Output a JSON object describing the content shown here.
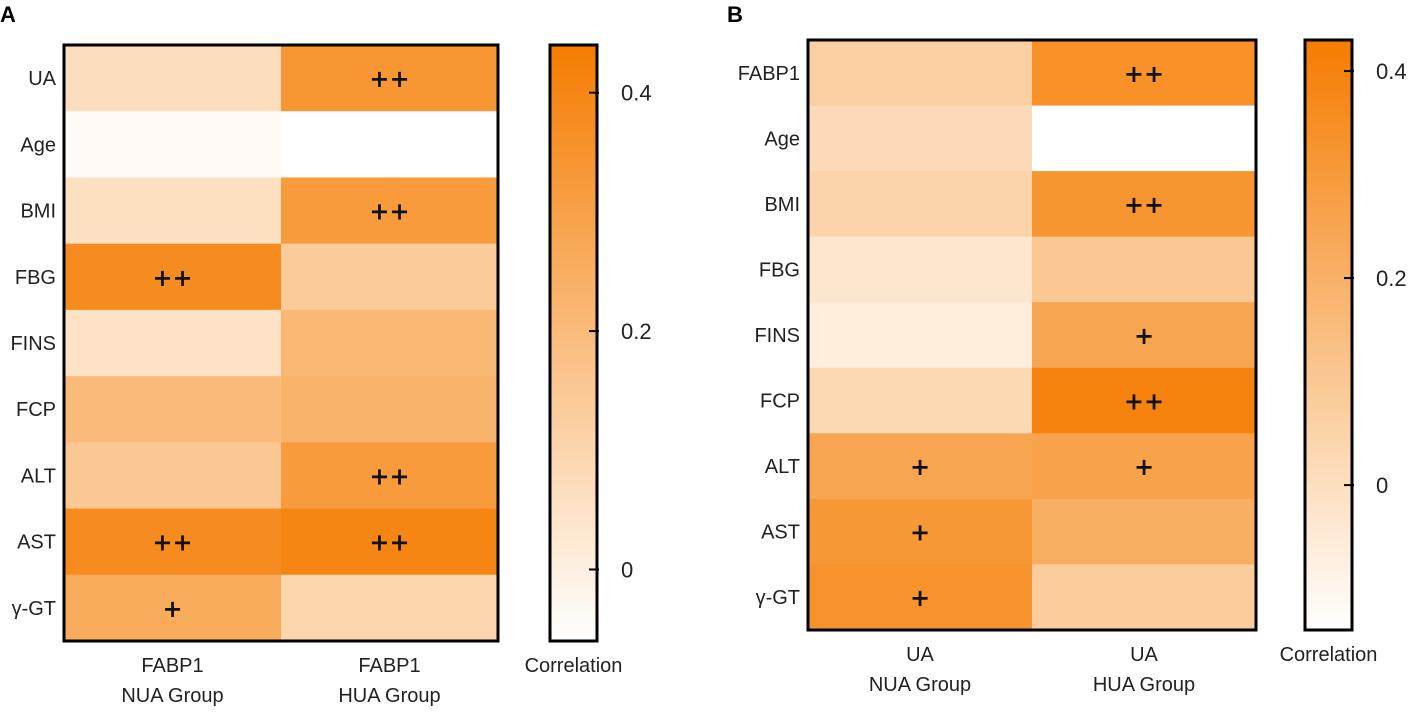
{
  "chart_data": [
    {
      "panel": "A",
      "type": "heatmap",
      "rows": [
        "UA",
        "Age",
        "BMI",
        "FBG",
        "FINS",
        "FCP",
        "ALT",
        "AST",
        "γ-GT"
      ],
      "columns": [
        [
          "FABP1",
          "NUA Group"
        ],
        [
          "FABP1",
          "HUA Group"
        ]
      ],
      "values": [
        [
          0.07,
          0.34
        ],
        [
          -0.04,
          -0.06
        ],
        [
          0.06,
          0.32
        ],
        [
          0.38,
          0.14
        ],
        [
          0.05,
          0.21
        ],
        [
          0.2,
          0.23
        ],
        [
          0.15,
          0.32
        ],
        [
          0.38,
          0.4
        ],
        [
          0.26,
          0.1
        ]
      ],
      "significance": [
        [
          "",
          "++"
        ],
        [
          "",
          ""
        ],
        [
          "",
          "++"
        ],
        [
          "++",
          ""
        ],
        [
          "",
          ""
        ],
        [
          "",
          ""
        ],
        [
          "",
          "++"
        ],
        [
          "++",
          "++"
        ],
        [
          "+",
          ""
        ]
      ],
      "colorbar": {
        "label": "Correlation",
        "range": [
          -0.06,
          0.44
        ],
        "ticks": [
          0,
          0.2,
          0.4
        ],
        "tick_labels": [
          "0",
          "0.2",
          "0.4"
        ],
        "color_low": "#ffffff",
        "color_high": "#f57c00"
      }
    },
    {
      "panel": "B",
      "type": "heatmap",
      "rows": [
        "FABP1",
        "Age",
        "BMI",
        "FBG",
        "FINS",
        "FCP",
        "ALT",
        "AST",
        "γ-GT"
      ],
      "columns": [
        [
          "UA",
          "NUA Group"
        ],
        [
          "UA",
          "HUA Group"
        ]
      ],
      "values": [
        [
          0.07,
          0.34
        ],
        [
          0.02,
          -0.14
        ],
        [
          0.05,
          0.32
        ],
        [
          -0.03,
          0.1
        ],
        [
          -0.06,
          0.25
        ],
        [
          0.03,
          0.4
        ],
        [
          0.25,
          0.26
        ],
        [
          0.31,
          0.21
        ],
        [
          0.33,
          0.08
        ]
      ],
      "significance": [
        [
          "",
          "++"
        ],
        [
          "",
          ""
        ],
        [
          "",
          "++"
        ],
        [
          "",
          ""
        ],
        [
          "",
          "+"
        ],
        [
          "",
          "++"
        ],
        [
          "+",
          "+"
        ],
        [
          "+",
          ""
        ],
        [
          "+",
          ""
        ]
      ],
      "colorbar": {
        "label": "Correlation",
        "range": [
          -0.14,
          0.43
        ],
        "ticks": [
          0,
          0.2,
          0.4
        ],
        "tick_labels": [
          "0",
          "0.2",
          "0.4"
        ],
        "color_low": "#ffffff",
        "color_high": "#f57c00"
      }
    }
  ]
}
